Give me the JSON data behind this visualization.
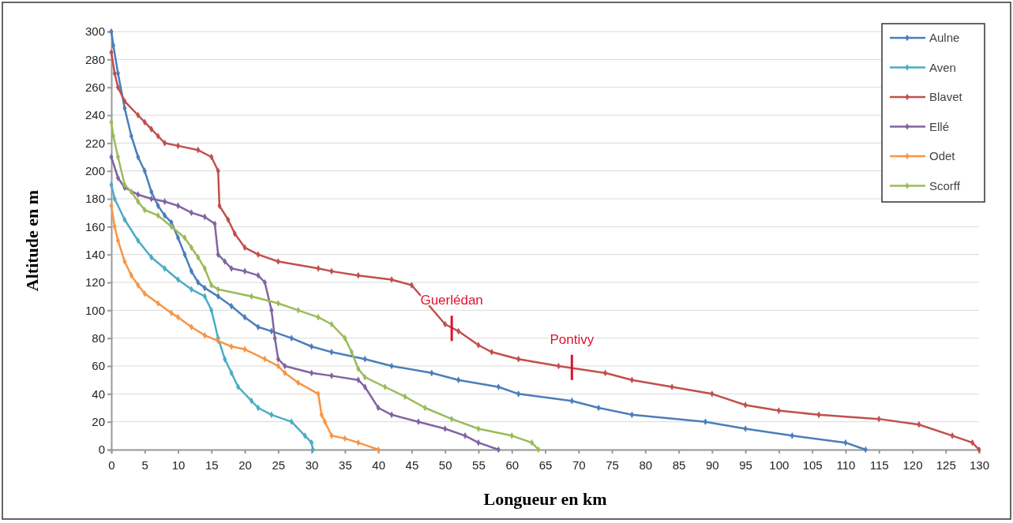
{
  "chart_data": {
    "type": "line",
    "xlabel": "Longueur en km",
    "ylabel": "Altitude en m",
    "xlim": [
      0,
      130
    ],
    "ylim": [
      0,
      300
    ],
    "xticks": [
      0,
      5,
      10,
      15,
      20,
      25,
      30,
      35,
      40,
      45,
      50,
      55,
      60,
      65,
      70,
      75,
      80,
      85,
      90,
      95,
      100,
      105,
      110,
      115,
      120,
      125,
      130
    ],
    "yticks": [
      0,
      20,
      40,
      60,
      80,
      100,
      120,
      140,
      160,
      180,
      200,
      220,
      240,
      260,
      280,
      300
    ],
    "grid": "y",
    "legend": "top right",
    "marker": "diamond",
    "line_style": "solid",
    "annotations": [
      {
        "text": "Guerlédan",
        "x": 51,
        "y": 87
      },
      {
        "text": "Pontivy",
        "x": 69,
        "y": 59
      }
    ],
    "series": [
      {
        "name": "Aulne",
        "color": "#4a7ebb",
        "x": [
          0,
          0.3,
          1,
          2,
          3,
          4,
          5,
          6,
          7,
          8,
          9,
          10,
          11,
          12,
          13,
          14,
          16,
          18,
          20,
          22,
          24,
          27,
          30,
          33,
          38,
          42,
          48,
          52,
          58,
          61,
          69,
          73,
          78,
          89,
          95,
          102,
          110,
          113
        ],
        "values": [
          300,
          290,
          270,
          245,
          225,
          210,
          200,
          185,
          175,
          168,
          163,
          152,
          140,
          128,
          120,
          116,
          110,
          103,
          95,
          88,
          85,
          80,
          74,
          70,
          65,
          60,
          55,
          50,
          45,
          40,
          35,
          30,
          25,
          20,
          15,
          10,
          5,
          0
        ]
      },
      {
        "name": "Aven",
        "color": "#4bacc6",
        "x": [
          0,
          0.5,
          2,
          4,
          6,
          8,
          10,
          12,
          14,
          15,
          16,
          17,
          18,
          19,
          21,
          22,
          24,
          27,
          29,
          30,
          30.2
        ],
        "values": [
          190,
          180,
          165,
          150,
          138,
          130,
          122,
          115,
          110,
          100,
          80,
          65,
          55,
          45,
          35,
          30,
          25,
          20,
          10,
          5,
          0
        ]
      },
      {
        "name": "Blavet",
        "color": "#c0504d",
        "x": [
          0,
          0.5,
          1,
          2,
          4,
          5,
          6,
          7,
          8,
          10,
          13,
          15,
          16,
          16.2,
          17.5,
          18.5,
          20,
          22,
          25,
          31,
          33,
          37,
          42,
          45,
          50,
          52,
          55,
          57,
          61,
          67,
          74,
          78,
          84,
          90,
          95,
          100,
          106,
          115,
          121,
          126,
          129,
          130
        ],
        "values": [
          285,
          270,
          260,
          250,
          240,
          235,
          230,
          225,
          220,
          218,
          215,
          210,
          200,
          175,
          165,
          155,
          145,
          140,
          135,
          130,
          128,
          125,
          122,
          118,
          90,
          85,
          75,
          70,
          65,
          60,
          55,
          50,
          45,
          40,
          32,
          28,
          25,
          22,
          18,
          10,
          5,
          0
        ]
      },
      {
        "name": "Ellé",
        "color": "#8064a2",
        "x": [
          0,
          1,
          2,
          4,
          6,
          8,
          10,
          12,
          14,
          15.5,
          16,
          17,
          18,
          20,
          22,
          23,
          24,
          24.5,
          25,
          26,
          30,
          33,
          37,
          38,
          40,
          42,
          46,
          50,
          53,
          55,
          58
        ],
        "values": [
          210,
          195,
          188,
          183,
          180,
          178,
          175,
          170,
          167,
          162,
          140,
          135,
          130,
          128,
          125,
          120,
          100,
          80,
          65,
          60,
          55,
          53,
          50,
          45,
          30,
          25,
          20,
          15,
          10,
          5,
          0
        ]
      },
      {
        "name": "Odet",
        "color": "#f79646",
        "x": [
          0,
          0.5,
          1,
          2,
          3,
          4,
          5,
          7,
          9,
          10,
          12,
          14,
          16,
          18,
          20,
          23,
          25,
          26,
          28,
          31,
          31.5,
          32,
          33,
          35,
          37,
          40
        ],
        "values": [
          175,
          160,
          150,
          135,
          125,
          118,
          112,
          105,
          98,
          95,
          88,
          82,
          78,
          74,
          72,
          65,
          60,
          55,
          48,
          40,
          25,
          20,
          10,
          8,
          5,
          0
        ]
      },
      {
        "name": "Scorff",
        "color": "#9bbb59",
        "x": [
          0,
          0.3,
          1,
          2,
          3,
          4,
          5,
          7,
          9,
          11,
          12,
          13,
          14,
          15,
          16,
          21,
          25,
          28,
          31,
          33,
          35,
          36,
          37,
          38,
          41,
          44,
          47,
          51,
          55,
          60,
          63,
          64
        ],
        "values": [
          235,
          225,
          210,
          190,
          185,
          178,
          172,
          168,
          160,
          152,
          145,
          138,
          130,
          118,
          115,
          110,
          105,
          100,
          95,
          90,
          80,
          70,
          58,
          52,
          45,
          38,
          30,
          22,
          15,
          10,
          5,
          0
        ]
      }
    ]
  }
}
